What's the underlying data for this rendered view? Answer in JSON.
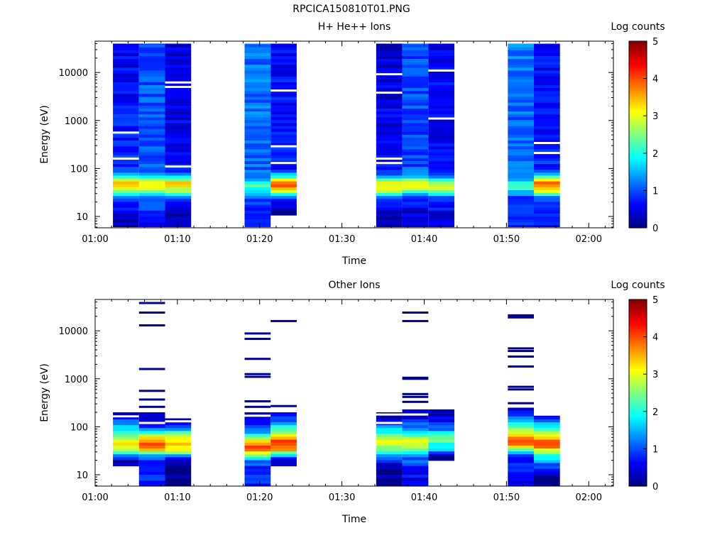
{
  "file_title": "RPCICA150810T01.PNG",
  "chart_data": [
    {
      "type": "heatmap",
      "title": "H+ He++ Ions",
      "xlabel": "Time",
      "ylabel": "Energy (eV)",
      "x_ticks": [
        "01:00",
        "01:10",
        "01:20",
        "01:30",
        "01:40",
        "01:50",
        "02:00"
      ],
      "x_range": [
        "01:00",
        "02:03"
      ],
      "y_scale": "log",
      "y_ticks": [
        "10",
        "100",
        "1000",
        "10000"
      ],
      "y_range": [
        5.8,
        45000
      ],
      "colorbar": {
        "label": "Log counts",
        "range": [
          0,
          5
        ],
        "ticks": [
          "0",
          "1",
          "2",
          "3",
          "4",
          "5"
        ]
      },
      "columns": [
        {
          "start": "01:02:10",
          "end": "01:05:20",
          "profile": [
            [
              8,
              0.3
            ],
            [
              14,
              0.6
            ],
            [
              20,
              0.9
            ],
            [
              26,
              1.5
            ],
            [
              32,
              2.6
            ],
            [
              40,
              3.1
            ],
            [
              50,
              3.4
            ],
            [
              60,
              2.6
            ],
            [
              75,
              1.4
            ],
            [
              100,
              0.9
            ],
            [
              40000,
              0.5
            ]
          ],
          "gaps": [
            160,
            560
          ]
        },
        {
          "start": "01:05:20",
          "end": "01:08:30",
          "profile": [
            [
              8,
              0.7
            ],
            [
              14,
              0.9
            ],
            [
              20,
              1.0
            ],
            [
              26,
              1.2
            ],
            [
              32,
              2.4
            ],
            [
              40,
              3.0
            ],
            [
              50,
              3.2
            ],
            [
              60,
              2.5
            ],
            [
              75,
              1.4
            ],
            [
              100,
              1.1
            ],
            [
              40000,
              1.0
            ]
          ],
          "gaps": []
        },
        {
          "start": "01:08:30",
          "end": "01:11:40",
          "profile": [
            [
              8,
              0.2
            ],
            [
              14,
              0.4
            ],
            [
              20,
              0.6
            ],
            [
              26,
              1.3
            ],
            [
              32,
              2.6
            ],
            [
              40,
              3.1
            ],
            [
              50,
              3.3
            ],
            [
              60,
              2.4
            ],
            [
              75,
              1.1
            ],
            [
              100,
              0.6
            ],
            [
              40000,
              0.4
            ]
          ],
          "gaps": [
            110,
            5000,
            6200
          ]
        },
        {
          "start": "01:18:10",
          "end": "01:21:20",
          "profile": [
            [
              8,
              0.7
            ],
            [
              14,
              0.8
            ],
            [
              20,
              0.9
            ],
            [
              26,
              1.0
            ],
            [
              32,
              1.6
            ],
            [
              40,
              2.2
            ],
            [
              50,
              2.0
            ],
            [
              60,
              1.4
            ],
            [
              100,
              1.1
            ],
            [
              40000,
              1.2
            ]
          ],
          "gaps": []
        },
        {
          "start": "01:21:20",
          "end": "01:24:30",
          "profile": [
            [
              14,
              0.2
            ],
            [
              20,
              0.4
            ],
            [
              26,
              1.1
            ],
            [
              32,
              2.8
            ],
            [
              40,
              3.7
            ],
            [
              50,
              4.0
            ],
            [
              60,
              3.2
            ],
            [
              70,
              1.7
            ],
            [
              100,
              0.8
            ],
            [
              40000,
              0.6
            ]
          ],
          "gaps": [
            130,
            290,
            4200
          ]
        },
        {
          "start": "01:34:10",
          "end": "01:37:20",
          "profile": [
            [
              8,
              0.2
            ],
            [
              14,
              0.4
            ],
            [
              20,
              0.6
            ],
            [
              26,
              1.3
            ],
            [
              32,
              2.6
            ],
            [
              40,
              3.0
            ],
            [
              50,
              3.1
            ],
            [
              60,
              2.3
            ],
            [
              75,
              1.2
            ],
            [
              100,
              0.6
            ],
            [
              40000,
              0.4
            ]
          ],
          "gaps": [
            130,
            160,
            3800,
            9200
          ]
        },
        {
          "start": "01:37:20",
          "end": "01:40:30",
          "profile": [
            [
              8,
              0.3
            ],
            [
              14,
              0.5
            ],
            [
              20,
              0.8
            ],
            [
              26,
              1.1
            ],
            [
              32,
              2.2
            ],
            [
              40,
              2.8
            ],
            [
              50,
              3.0
            ],
            [
              60,
              2.2
            ],
            [
              75,
              1.3
            ],
            [
              100,
              1.0
            ],
            [
              40000,
              1.0
            ]
          ],
          "gaps": []
        },
        {
          "start": "01:40:30",
          "end": "01:43:40",
          "profile": [
            [
              8,
              0.4
            ],
            [
              14,
              0.6
            ],
            [
              20,
              0.8
            ],
            [
              26,
              1.2
            ],
            [
              32,
              2.4
            ],
            [
              40,
              2.9
            ],
            [
              50,
              2.6
            ],
            [
              60,
              1.8
            ],
            [
              75,
              1.1
            ],
            [
              100,
              0.7
            ],
            [
              40000,
              0.5
            ]
          ],
          "gaps": [
            1100,
            11000
          ]
        },
        {
          "start": "01:50:10",
          "end": "01:53:20",
          "profile": [
            [
              8,
              0.8
            ],
            [
              14,
              0.7
            ],
            [
              20,
              0.8
            ],
            [
              26,
              1.0
            ],
            [
              32,
              1.6
            ],
            [
              40,
              2.3
            ],
            [
              50,
              2.0
            ],
            [
              60,
              1.4
            ],
            [
              100,
              1.1
            ],
            [
              40000,
              1.2
            ]
          ],
          "gaps": []
        },
        {
          "start": "01:53:20",
          "end": "01:56:30",
          "profile": [
            [
              8,
              0.6
            ],
            [
              14,
              0.8
            ],
            [
              20,
              0.9
            ],
            [
              26,
              1.4
            ],
            [
              32,
              2.8
            ],
            [
              40,
              3.6
            ],
            [
              50,
              3.9
            ],
            [
              60,
              3.2
            ],
            [
              75,
              1.6
            ],
            [
              100,
              0.8
            ],
            [
              40000,
              0.6
            ]
          ],
          "gaps": [
            210,
            340
          ]
        }
      ]
    },
    {
      "type": "heatmap",
      "title": "Other Ions",
      "xlabel": "Time",
      "ylabel": "Energy (eV)",
      "x_ticks": [
        "01:00",
        "01:10",
        "01:20",
        "01:30",
        "01:40",
        "01:50",
        "02:00"
      ],
      "x_range": [
        "01:00",
        "02:03"
      ],
      "y_scale": "log",
      "y_ticks": [
        "10",
        "100",
        "1000",
        "10000"
      ],
      "y_range": [
        5.8,
        45000
      ],
      "colorbar": {
        "label": "Log counts",
        "range": [
          0,
          5
        ],
        "ticks": [
          "0",
          "1",
          "2",
          "3",
          "4",
          "5"
        ]
      },
      "columns": [
        {
          "start": "01:02:10",
          "end": "01:05:20",
          "profile": [
            [
              20,
              0.3
            ],
            [
              26,
              1.3
            ],
            [
              32,
              2.5
            ],
            [
              40,
              3.2
            ],
            [
              50,
              3.0
            ],
            [
              65,
              2.5
            ],
            [
              85,
              1.9
            ],
            [
              110,
              1.4
            ],
            [
              150,
              0.9
            ],
            [
              200,
              0.3
            ]
          ],
          "gaps": [
            165
          ],
          "lines": []
        },
        {
          "start": "01:05:20",
          "end": "01:08:30",
          "profile": [
            [
              6,
              0.8
            ],
            [
              12,
              0.8
            ],
            [
              20,
              0.8
            ],
            [
              26,
              1.7
            ],
            [
              32,
              3.4
            ],
            [
              40,
              3.9
            ],
            [
              50,
              3.8
            ],
            [
              65,
              2.9
            ],
            [
              85,
              1.3
            ],
            [
              110,
              0.5
            ],
            [
              200,
              0.1
            ]
          ],
          "gaps": [
            120
          ],
          "lines": [
            260,
            370,
            560,
            1600,
            13000,
            24000,
            38000
          ]
        },
        {
          "start": "01:08:30",
          "end": "01:11:40",
          "profile": [
            [
              6,
              0.1
            ],
            [
              9,
              0.1
            ],
            [
              20,
              0.3
            ],
            [
              26,
              1.8
            ],
            [
              32,
              3.0
            ],
            [
              40,
              3.3
            ],
            [
              50,
              3.3
            ],
            [
              65,
              2.6
            ],
            [
              85,
              1.7
            ],
            [
              110,
              0.9
            ],
            [
              150,
              0.3
            ]
          ],
          "gaps": [
            130
          ],
          "lines": []
        },
        {
          "start": "01:18:10",
          "end": "01:21:20",
          "profile": [
            [
              6,
              0.8
            ],
            [
              12,
              0.8
            ],
            [
              16,
              0.9
            ],
            [
              20,
              1.3
            ],
            [
              26,
              2.8
            ],
            [
              32,
              3.8
            ],
            [
              40,
              4.0
            ],
            [
              50,
              3.4
            ],
            [
              65,
              2.3
            ],
            [
              85,
              1.2
            ],
            [
              110,
              0.7
            ],
            [
              150,
              0.3
            ],
            [
              200,
              0.2
            ]
          ],
          "gaps": [
            170
          ],
          "lines": [
            260,
            340,
            1100,
            1250,
            2600,
            6800,
            8800
          ]
        },
        {
          "start": "01:21:20",
          "end": "01:24:30",
          "profile": [
            [
              20,
              0.4
            ],
            [
              26,
              1.6
            ],
            [
              32,
              3.5
            ],
            [
              40,
              4.1
            ],
            [
              50,
              4.0
            ],
            [
              65,
              3.0
            ],
            [
              85,
              2.4
            ],
            [
              110,
              1.6
            ],
            [
              150,
              0.9
            ],
            [
              200,
              0.2
            ]
          ],
          "gaps": [],
          "lines": [
            270,
            16000
          ]
        },
        {
          "start": "01:34:10",
          "end": "01:37:20",
          "profile": [
            [
              6,
              0.1
            ],
            [
              15,
              0.2
            ],
            [
              26,
              1.3
            ],
            [
              32,
              2.6
            ],
            [
              40,
              2.8
            ],
            [
              50,
              2.9
            ],
            [
              65,
              2.5
            ],
            [
              85,
              1.8
            ],
            [
              110,
              1.0
            ],
            [
              150,
              0.3
            ],
            [
              200,
              0.1
            ]
          ],
          "gaps": [
            120,
            180
          ],
          "lines": []
        },
        {
          "start": "01:37:20",
          "end": "01:40:30",
          "profile": [
            [
              6,
              0.6
            ],
            [
              12,
              0.6
            ],
            [
              16,
              0.9
            ],
            [
              26,
              1.3
            ],
            [
              32,
              2.4
            ],
            [
              40,
              2.8
            ],
            [
              50,
              2.9
            ],
            [
              65,
              2.4
            ],
            [
              85,
              1.6
            ],
            [
              110,
              1.1
            ],
            [
              150,
              0.6
            ],
            [
              230,
              0.2
            ]
          ],
          "gaps": [
            180
          ],
          "lines": [
            330,
            420,
            480,
            1000,
            1050,
            16000,
            24000
          ]
        },
        {
          "start": "01:40:30",
          "end": "01:43:40",
          "profile": [
            [
              26,
              0.2
            ],
            [
              32,
              1.4
            ],
            [
              40,
              2.0
            ],
            [
              50,
              2.2
            ],
            [
              65,
              2.3
            ],
            [
              85,
              1.4
            ],
            [
              110,
              0.8
            ],
            [
              150,
              0.5
            ],
            [
              230,
              0.2
            ]
          ],
          "gaps": [],
          "lines": []
        },
        {
          "start": "01:50:10",
          "end": "01:53:20",
          "profile": [
            [
              6,
              0.7
            ],
            [
              12,
              0.7
            ],
            [
              16,
              0.9
            ],
            [
              20,
              0.4
            ],
            [
              26,
              1.0
            ],
            [
              32,
              2.2
            ],
            [
              40,
              3.4
            ],
            [
              50,
              4.0
            ],
            [
              65,
              3.3
            ],
            [
              85,
              2.7
            ],
            [
              110,
              2.2
            ],
            [
              150,
              1.6
            ],
            [
              200,
              0.6
            ],
            [
              250,
              0.3
            ]
          ],
          "gaps": [],
          "lines": [
            310,
            600,
            680,
            1800,
            2900,
            3800,
            4300,
            19000,
            21000
          ]
        },
        {
          "start": "01:53:20",
          "end": "01:56:30",
          "profile": [
            [
              6,
              0.2
            ],
            [
              9,
              0.1
            ],
            [
              26,
              1.9
            ],
            [
              32,
              3.0
            ],
            [
              40,
              3.8
            ],
            [
              50,
              3.9
            ],
            [
              65,
              3.4
            ],
            [
              85,
              2.6
            ],
            [
              110,
              1.6
            ],
            [
              150,
              0.8
            ],
            [
              170,
              0.5
            ]
          ],
          "gaps": [],
          "lines": []
        }
      ]
    }
  ]
}
